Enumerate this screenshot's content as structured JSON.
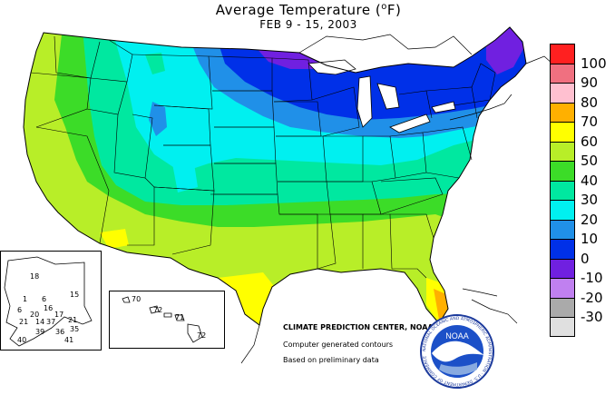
{
  "title": {
    "main": "Average Temperature (",
    "unit_sup": "o",
    "unit_tail": "F)",
    "date_range": "FEB 9 - 15, 2003"
  },
  "legend": {
    "items": [
      {
        "label": "100",
        "color": "#ff2020"
      },
      {
        "label": "90",
        "color": "#f07080"
      },
      {
        "label": "80",
        "color": "#ffc0d0"
      },
      {
        "label": "70",
        "color": "#ffb000"
      },
      {
        "label": "60",
        "color": "#ffff00"
      },
      {
        "label": "50",
        "color": "#b8ee28"
      },
      {
        "label": "40",
        "color": "#3cdc28"
      },
      {
        "label": "30",
        "color": "#00e8a0"
      },
      {
        "label": "20",
        "color": "#00f0f0"
      },
      {
        "label": "10",
        "color": "#2090e8"
      },
      {
        "label": "0",
        "color": "#0030e8"
      },
      {
        "label": "-10",
        "color": "#7020e0"
      },
      {
        "label": "-20",
        "color": "#c080f0"
      },
      {
        "label": "-30",
        "color": "#aaaaaa"
      },
      {
        "label": "",
        "color": "#e0e0e0"
      }
    ]
  },
  "credits": {
    "center": "CLIMATE PREDICTION CENTER, NOAA",
    "line2": "Computer generated contours",
    "line3": "Based on preliminary data"
  },
  "alaska_values": [
    "18",
    "15",
    "1",
    "6",
    "16",
    "6",
    "20",
    "17",
    "21",
    "14",
    "37",
    "21",
    "35",
    "36",
    "39",
    "40",
    "41"
  ],
  "hawaii_values": [
    "70",
    "72",
    "71",
    "72"
  ],
  "logo": {
    "text": "NOAA",
    "ring_text": "NATIONAL OCEANIC AND ATMOSPHERIC ADMINISTRATION · U.S. DEPARTMENT OF COMMERCE"
  }
}
